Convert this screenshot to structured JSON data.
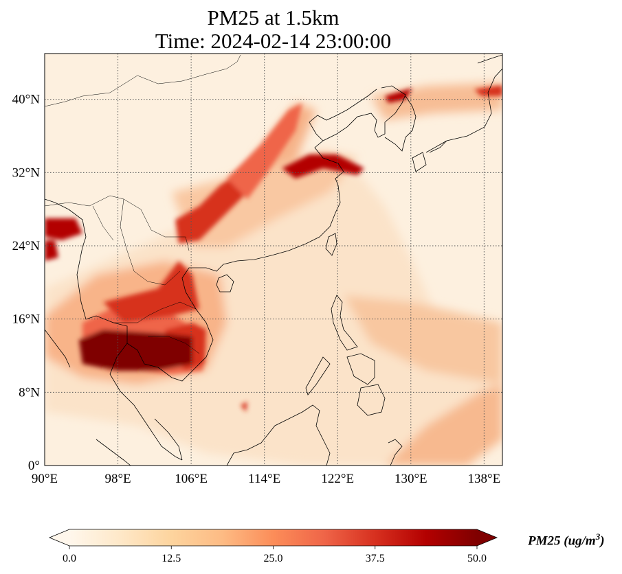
{
  "title_line1": "PM25 at 1.5km",
  "title_line2": "Time: 2024-02-14 23:00:00",
  "map": {
    "lon_range": [
      90,
      140
    ],
    "lat_range": [
      0,
      45
    ],
    "lon_ticks": [
      {
        "value": 90,
        "label": "90°E"
      },
      {
        "value": 98,
        "label": "98°E"
      },
      {
        "value": 106,
        "label": "106°E"
      },
      {
        "value": 114,
        "label": "114°E"
      },
      {
        "value": 122,
        "label": "122°E"
      },
      {
        "value": 130,
        "label": "130°E"
      },
      {
        "value": 138,
        "label": "138°E"
      }
    ],
    "lat_ticks": [
      {
        "value": 0,
        "label": "0°"
      },
      {
        "value": 8,
        "label": "8°N"
      },
      {
        "value": 16,
        "label": "16°N"
      },
      {
        "value": 24,
        "label": "24°N"
      },
      {
        "value": 32,
        "label": "32°N"
      },
      {
        "value": 40,
        "label": "40°N"
      }
    ],
    "gridlines": "dotted"
  },
  "colorbar": {
    "label_main": "PM25 (ug/m",
    "label_sup": "3",
    "label_close": ")",
    "min": 0.0,
    "max": 50.0,
    "ticks": [
      "0.0",
      "12.5",
      "25.0",
      "37.5",
      "50.0"
    ],
    "colormap": "OrRd",
    "colors": [
      "#fff7ec",
      "#fee8c8",
      "#fdd49e",
      "#fdbb84",
      "#fc8d59",
      "#ef6548",
      "#d7301f",
      "#b30000",
      "#7f0000"
    ],
    "extend": "both"
  }
}
